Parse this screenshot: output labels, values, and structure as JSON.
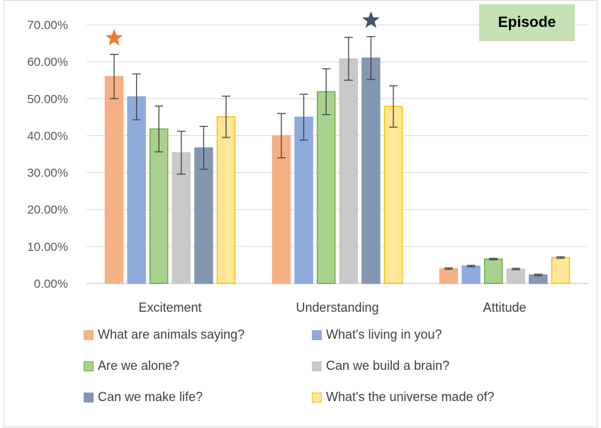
{
  "badge": {
    "label": "Episode"
  },
  "chart_data": {
    "type": "bar",
    "categories": [
      "Excitement",
      "Understanding",
      "Attitude"
    ],
    "ylim": [
      0,
      0.7
    ],
    "y_ticks": [
      "0.00%",
      "10.00%",
      "20.00%",
      "30.00%",
      "40.00%",
      "50.00%",
      "60.00%",
      "70.00%"
    ],
    "grid": true,
    "legend_position": "bottom",
    "series": [
      {
        "name": "What are animals saying?",
        "color": "#f4b183",
        "border": "#f4b183",
        "values": [
          0.56,
          0.4,
          0.04
        ],
        "errors": [
          0.06,
          0.06,
          0.002
        ]
      },
      {
        "name": "What's living in you?",
        "color": "#8faadc",
        "border": "#8faadc",
        "values": [
          0.505,
          0.45,
          0.047
        ],
        "errors": [
          0.062,
          0.062,
          0.002
        ]
      },
      {
        "name": "Are we alone?",
        "color": "#a9d18e",
        "border": "#70ad47",
        "values": [
          0.418,
          0.519,
          0.066
        ],
        "errors": [
          0.062,
          0.062,
          0.002
        ]
      },
      {
        "name": "Can we build a brain?",
        "color": "#c9c9c9",
        "border": "#c9c9c9",
        "values": [
          0.354,
          0.608,
          0.039
        ],
        "errors": [
          0.058,
          0.058,
          0.002
        ]
      },
      {
        "name": "Can we make life?",
        "color": "#8497b0",
        "border": "#8497b0",
        "values": [
          0.367,
          0.61,
          0.023
        ],
        "errors": [
          0.058,
          0.058,
          0.002
        ]
      },
      {
        "name": "What's the universe made of?",
        "color": "#ffe699",
        "border": "#ffc000",
        "values": [
          0.451,
          0.479,
          0.07
        ],
        "errors": [
          0.056,
          0.056,
          0.002
        ]
      }
    ],
    "annotations": [
      {
        "type": "star",
        "category": "Excitement",
        "series": "What are animals saying?",
        "color": "#ed7d31"
      },
      {
        "type": "star",
        "category": "Understanding",
        "series": "Can we make life?",
        "color": "#44546a"
      }
    ]
  }
}
